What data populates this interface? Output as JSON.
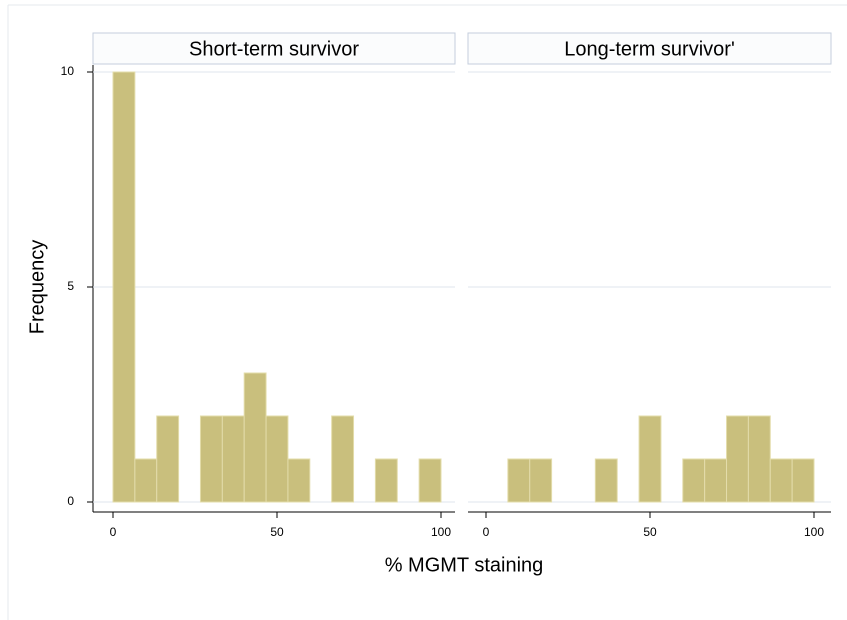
{
  "chart_data": {
    "type": "histogram",
    "xlabel": "% MGMT staining",
    "ylabel": "Frequency",
    "bins": [
      0,
      6.667,
      13.333,
      20,
      26.667,
      33.333,
      40,
      46.667,
      53.333,
      60,
      66.667,
      73.333,
      80,
      86.667,
      93.333,
      100
    ],
    "color": "#c9bf7d",
    "panels": [
      {
        "title": "Short-term survivor",
        "values": [
          10,
          1,
          2,
          0,
          2,
          2,
          3,
          2,
          1,
          0,
          2,
          0,
          1,
          0,
          1
        ]
      },
      {
        "title": "Long-term survivor'",
        "values": [
          0,
          1,
          1,
          0,
          0,
          1,
          0,
          2,
          0,
          1,
          1,
          2,
          2,
          1,
          1
        ]
      }
    ],
    "xlim": [
      0,
      100
    ],
    "xticks": [
      0,
      50,
      100
    ],
    "ylim": [
      0,
      10
    ],
    "yticks": [
      0,
      5,
      10
    ],
    "grid": true
  }
}
